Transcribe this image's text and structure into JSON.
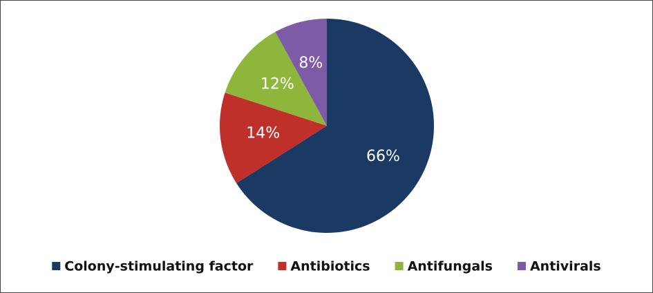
{
  "chart_data": {
    "type": "pie",
    "categories": [
      "Colony-stimulating factor",
      "Antibiotics",
      "Antifungals",
      "Antivirals"
    ],
    "values": [
      66,
      14,
      12,
      8
    ],
    "value_labels": [
      "66%",
      "14%",
      "12%",
      "8%"
    ],
    "colors": [
      "#1b3a63",
      "#c0302b",
      "#8fb63c",
      "#7d5ba6"
    ],
    "legend": "bottom"
  }
}
